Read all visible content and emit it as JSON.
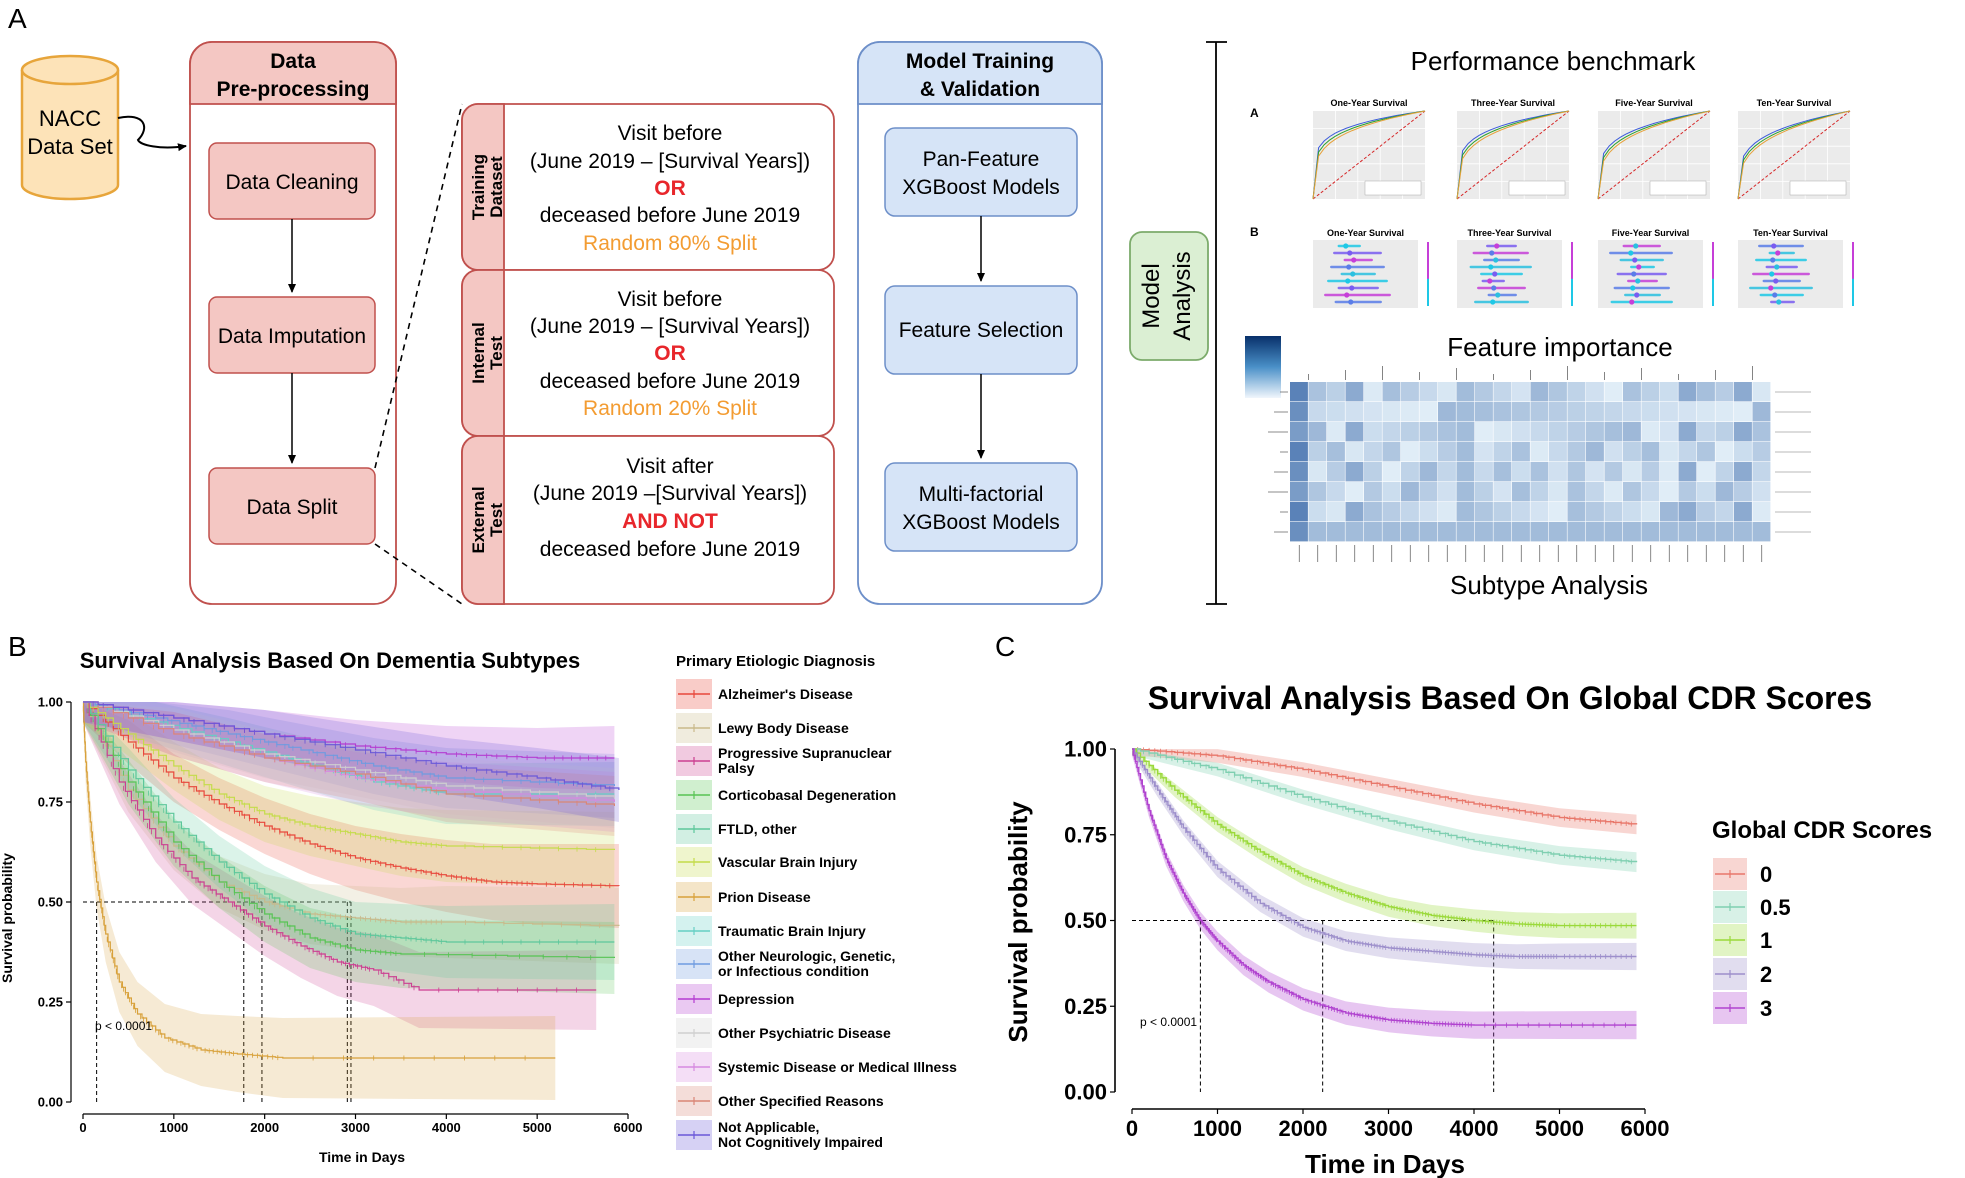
{
  "panel_labels": {
    "a": "A",
    "b": "B",
    "c": "C"
  },
  "colors": {
    "pink_fill": "#f4c7c3",
    "pink_stroke": "#c0504d",
    "blue_fill": "#d6e4f7",
    "blue_stroke": "#6d8fc9",
    "green_fill": "#dbefd3",
    "green_stroke": "#7cab6b",
    "cyl_fill": "#fde3b8",
    "cyl_stroke": "#e7a53b",
    "red_text": "#e8262b",
    "orange_text": "#f39c32"
  },
  "pipeline": {
    "dataset": {
      "line1": "NACC",
      "line2": "Data Set"
    },
    "preprocessing": {
      "title1": "Data",
      "title2": "Pre-processing",
      "steps": [
        "Data Cleaning",
        "Data Imputation",
        "Data Split"
      ]
    },
    "splits": [
      {
        "label1": "Training",
        "label2": "Dataset",
        "line1": "Visit before",
        "line2": "(June 2019 – [Survival Years])",
        "op": "OR",
        "line3": "deceased before June 2019",
        "line4": "Random 80% Split"
      },
      {
        "label1": "Internal",
        "label2": "Test",
        "line1": "Visit before",
        "line2": "(June 2019 – [Survival Years])",
        "op": "OR",
        "line3": "deceased before June 2019",
        "line4": "Random 20% Split"
      },
      {
        "label1": "External",
        "label2": "Test",
        "line1": "Visit after",
        "line2": "(June 2019 –[Survival Years])",
        "op": "AND NOT",
        "line3": "deceased before June 2019",
        "line4": ""
      }
    ],
    "model": {
      "title1": "Model Training",
      "title2": "& Validation",
      "steps": [
        {
          "l1": "Pan-Feature",
          "l2": "XGBoost Models"
        },
        {
          "l1": "Feature Selection",
          "l2": ""
        },
        {
          "l1": "Multi-factorial",
          "l2": "XGBoost Models"
        }
      ]
    },
    "analysis": {
      "label1": "Model",
      "label2": "Analysis",
      "performance_title": "Performance benchmark",
      "feature_title": "Feature importance",
      "subtype_title": "Subtype Analysis",
      "sub_a": "A",
      "sub_b": "B",
      "roc_titles": [
        "One-Year Survival",
        "Three-Year Survival",
        "Five-Year Survival",
        "Ten-Year Survival"
      ],
      "shap_titles": [
        "One-Year Survival",
        "Three-Year Survival",
        "Five-Year Survival",
        "Ten-Year Survival"
      ]
    }
  },
  "chart_data": [
    {
      "type": "line",
      "title": "Survival Analysis Based On Dementia Subtypes",
      "xlabel": "Time in Days",
      "ylabel": "Survival probability",
      "xlim": [
        0,
        6000
      ],
      "ylim": [
        0,
        1
      ],
      "xticks": [
        "0",
        "1000",
        "2000",
        "3000",
        "4000",
        "5000",
        "6000"
      ],
      "yticks": [
        "0.00",
        "0.25",
        "0.50",
        "0.75",
        "1.00"
      ],
      "pvalue": "p < 0.0001",
      "legend_title": "Primary Etiologic Diagnosis",
      "median_guides_x": [
        150,
        1770,
        1970,
        2910,
        2950
      ],
      "series": [
        {
          "name": "Alzheimer's Disease",
          "color": "#e8473b",
          "x": [
            0,
            500,
            1000,
            1500,
            2000,
            2500,
            3000,
            3500,
            4000,
            4500,
            5000,
            5900
          ],
          "y": [
            1,
            0.9,
            0.81,
            0.745,
            0.69,
            0.645,
            0.61,
            0.585,
            0.565,
            0.55,
            0.545,
            0.54
          ]
        },
        {
          "name": "Lewy Body Disease",
          "color": "#c9b98a",
          "x": [
            0,
            500,
            1000,
            1500,
            2000,
            2500,
            3000,
            3500,
            4000,
            5900
          ],
          "y": [
            1,
            0.78,
            0.64,
            0.55,
            0.5,
            0.47,
            0.46,
            0.45,
            0.45,
            0.44
          ]
        },
        {
          "name": "Progressive Supranuclear\nPalsy",
          "color": "#cc3f91",
          "x": [
            0,
            400,
            800,
            1200,
            1600,
            2000,
            2400,
            2800,
            3200,
            3700,
            5650
          ],
          "y": [
            1,
            0.8,
            0.66,
            0.56,
            0.5,
            0.44,
            0.39,
            0.35,
            0.33,
            0.28,
            0.28
          ]
        },
        {
          "name": "Corticobasal Degeneration",
          "color": "#57c454",
          "x": [
            0,
            500,
            1000,
            1500,
            2000,
            2500,
            3000,
            3500,
            5850
          ],
          "y": [
            1,
            0.8,
            0.65,
            0.55,
            0.47,
            0.41,
            0.38,
            0.37,
            0.36
          ]
        },
        {
          "name": "FTLD, other",
          "color": "#5cc79b",
          "x": [
            0,
            500,
            1000,
            1500,
            2000,
            2500,
            3000,
            3500,
            4000,
            5850
          ],
          "y": [
            1,
            0.83,
            0.7,
            0.6,
            0.52,
            0.46,
            0.42,
            0.41,
            0.4,
            0.4
          ]
        },
        {
          "name": "Vascular Brain Injury",
          "color": "#c4dc4a",
          "x": [
            0,
            500,
            1000,
            1500,
            2000,
            2500,
            3000,
            3500,
            4000,
            5850
          ],
          "y": [
            1,
            0.92,
            0.84,
            0.77,
            0.72,
            0.69,
            0.67,
            0.65,
            0.64,
            0.63
          ]
        },
        {
          "name": "Prion Disease",
          "color": "#d8a13a",
          "x": [
            0,
            30,
            80,
            150,
            250,
            400,
            600,
            900,
            1300,
            1700,
            2200,
            5200
          ],
          "y": [
            1,
            0.85,
            0.7,
            0.55,
            0.42,
            0.3,
            0.22,
            0.16,
            0.13,
            0.12,
            0.11,
            0.11
          ]
        },
        {
          "name": "Traumatic Brain Injury",
          "color": "#65cfc4",
          "x": [
            0,
            800,
            1600,
            2400,
            3200,
            4000,
            5850
          ],
          "y": [
            1,
            0.95,
            0.9,
            0.85,
            0.8,
            0.77,
            0.77
          ]
        },
        {
          "name": "Other Neurologic, Genetic,\nor Infectious condition",
          "color": "#6f9be0",
          "x": [
            0,
            800,
            1600,
            2400,
            3200,
            4000,
            5850
          ],
          "y": [
            1,
            0.96,
            0.92,
            0.88,
            0.84,
            0.81,
            0.79
          ]
        },
        {
          "name": "Depression",
          "color": "#b43cd1",
          "x": [
            0,
            1000,
            2000,
            3000,
            4000,
            5000,
            5850
          ],
          "y": [
            1,
            0.96,
            0.92,
            0.89,
            0.87,
            0.86,
            0.86
          ]
        },
        {
          "name": "Other Psychiatric Disease",
          "color": "#cfcfcf",
          "x": [
            0,
            1000,
            2000,
            3000,
            4000,
            5850
          ],
          "y": [
            1,
            0.93,
            0.87,
            0.83,
            0.79,
            0.76
          ]
        },
        {
          "name": "Systemic Disease or Medical Illness",
          "color": "#d68ae0",
          "x": [
            0,
            1000,
            2000,
            3000,
            4000,
            5850
          ],
          "y": [
            1,
            0.92,
            0.86,
            0.81,
            0.78,
            0.75
          ]
        },
        {
          "name": "Other Specified Reasons",
          "color": "#d98676",
          "x": [
            0,
            1000,
            2000,
            3000,
            4000,
            5850
          ],
          "y": [
            1,
            0.92,
            0.86,
            0.82,
            0.77,
            0.74
          ]
        },
        {
          "name": "Not Applicable,\nNot Cognitively Impaired",
          "color": "#6a58d8",
          "x": [
            0,
            1000,
            2000,
            3000,
            4000,
            5000,
            5900
          ],
          "y": [
            1,
            0.96,
            0.92,
            0.88,
            0.84,
            0.81,
            0.78
          ]
        }
      ]
    },
    {
      "type": "line",
      "title": "Survival Analysis Based On Global CDR Scores",
      "xlabel": "Time in Days",
      "ylabel": "Survival probability",
      "xlim": [
        0,
        6000
      ],
      "ylim": [
        0,
        1
      ],
      "xticks": [
        "0",
        "1000",
        "2000",
        "3000",
        "4000",
        "5000",
        "6000"
      ],
      "yticks": [
        "0.00",
        "0.25",
        "0.50",
        "0.75",
        "1.00"
      ],
      "pvalue": "p < 0.0001",
      "legend_title": "Global CDR Scores",
      "median_guides_x": [
        800,
        2230,
        4230
      ],
      "series": [
        {
          "name": "0",
          "color": "#e8776a",
          "x": [
            0,
            1000,
            2000,
            3000,
            4000,
            5000,
            5900
          ],
          "y": [
            1,
            0.98,
            0.94,
            0.89,
            0.84,
            0.8,
            0.78
          ]
        },
        {
          "name": "0.5",
          "color": "#7fcfb1",
          "x": [
            0,
            1000,
            2000,
            3000,
            4000,
            5000,
            5900
          ],
          "y": [
            1,
            0.94,
            0.86,
            0.79,
            0.73,
            0.69,
            0.67
          ]
        },
        {
          "name": "1",
          "color": "#9ad93a",
          "x": [
            0,
            500,
            1000,
            1500,
            2000,
            2500,
            3000,
            3500,
            4000,
            4500,
            5000,
            5900
          ],
          "y": [
            1,
            0.88,
            0.78,
            0.7,
            0.63,
            0.58,
            0.54,
            0.515,
            0.5,
            0.49,
            0.485,
            0.485
          ]
        },
        {
          "name": "2",
          "color": "#9d8fcb",
          "x": [
            0,
            300,
            600,
            1000,
            1500,
            2000,
            2500,
            3000,
            3500,
            4000,
            4500,
            5000,
            5900
          ],
          "y": [
            1,
            0.88,
            0.77,
            0.65,
            0.55,
            0.48,
            0.44,
            0.42,
            0.41,
            0.4,
            0.395,
            0.395,
            0.395
          ]
        },
        {
          "name": "3",
          "color": "#b043cf",
          "x": [
            0,
            200,
            400,
            600,
            800,
            1000,
            1300,
            1600,
            2000,
            2500,
            3000,
            3500,
            4000,
            5900
          ],
          "y": [
            1,
            0.82,
            0.68,
            0.58,
            0.5,
            0.44,
            0.37,
            0.32,
            0.27,
            0.23,
            0.21,
            0.2,
            0.195,
            0.195
          ]
        }
      ]
    }
  ]
}
